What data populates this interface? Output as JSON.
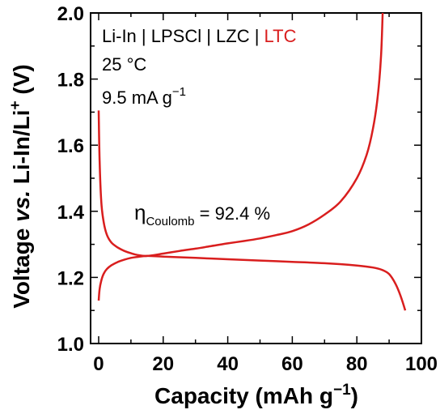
{
  "chart_data": {
    "type": "line",
    "title": "",
    "xlabel_main": "Capacity (mAh g",
    "xlabel_sup": "−1",
    "xlabel_end": ")",
    "ylabel_main": "Voltage ",
    "ylabel_italic": "vs.",
    "ylabel_rest": " Li-In/Li",
    "ylabel_sup": "+",
    "ylabel_end": " (V)",
    "xlim": [
      0,
      100
    ],
    "ylim": [
      1.0,
      2.0
    ],
    "xticks": [
      "0",
      "20",
      "40",
      "60",
      "80",
      "100"
    ],
    "yticks": [
      "1.0",
      "1.2",
      "1.4",
      "1.6",
      "1.8",
      "2.0"
    ],
    "grid": false,
    "line_color": "#d91e1e",
    "annotations": {
      "cell_prefix": "Li-In | LPSCl | LZC | ",
      "cell_highlight": "LTC",
      "temperature": "25 °C",
      "rate_main": "9.5 mA g",
      "rate_sup": "−1",
      "eta_symbol": "η",
      "eta_sub": "Coulomb",
      "eta_value": " = 92.4 %"
    },
    "series": [
      {
        "x": [
          0,
          0.3,
          0.8,
          1.5,
          2.5,
          4,
          6,
          8,
          10,
          12,
          15,
          20,
          25,
          30,
          35,
          40,
          45,
          50,
          55,
          60,
          65,
          70,
          75,
          80,
          83,
          85,
          86.5,
          87.5,
          88
        ],
        "y": [
          1.705,
          1.55,
          1.43,
          1.37,
          1.33,
          1.305,
          1.29,
          1.28,
          1.273,
          1.268,
          1.265,
          1.272,
          1.28,
          1.287,
          1.295,
          1.303,
          1.31,
          1.318,
          1.328,
          1.34,
          1.36,
          1.39,
          1.43,
          1.5,
          1.57,
          1.65,
          1.75,
          1.87,
          2.0
        ]
      },
      {
        "x": [
          0,
          0.3,
          0.8,
          1.5,
          2.5,
          4,
          6,
          8,
          10,
          12,
          15,
          20,
          30,
          40,
          50,
          60,
          70,
          80,
          85,
          88,
          90,
          92,
          93.5,
          95
        ],
        "y": [
          1.13,
          1.165,
          1.19,
          1.21,
          1.225,
          1.237,
          1.247,
          1.254,
          1.259,
          1.262,
          1.265,
          1.263,
          1.259,
          1.255,
          1.251,
          1.247,
          1.243,
          1.236,
          1.23,
          1.222,
          1.21,
          1.18,
          1.145,
          1.1
        ]
      }
    ]
  }
}
